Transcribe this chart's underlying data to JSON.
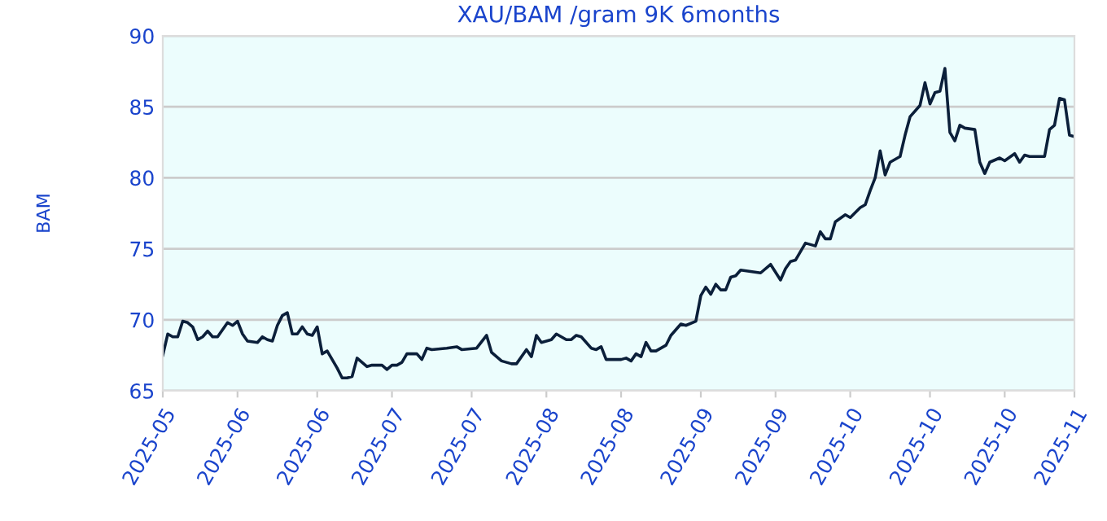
{
  "chart_data": {
    "type": "line",
    "title": "XAU/BAM /gram 9K 6months",
    "ylabel": "BAM",
    "x": [
      "2025-05-06",
      "2025-05-07",
      "2025-05-08",
      "2025-05-09",
      "2025-05-10",
      "2025-05-11",
      "2025-05-12",
      "2025-05-13",
      "2025-05-14",
      "2025-05-15",
      "2025-05-16",
      "2025-05-17",
      "2025-05-19",
      "2025-05-20",
      "2025-05-21",
      "2025-05-22",
      "2025-05-23",
      "2025-05-25",
      "2025-05-26",
      "2025-05-27",
      "2025-05-28",
      "2025-05-29",
      "2025-05-30",
      "2025-05-31",
      "2025-06-01",
      "2025-06-02",
      "2025-06-03",
      "2025-06-04",
      "2025-06-05",
      "2025-06-06",
      "2025-06-07",
      "2025-06-08",
      "2025-06-09",
      "2025-06-10",
      "2025-06-11",
      "2025-06-12",
      "2025-06-13",
      "2025-06-14",
      "2025-06-15",
      "2025-06-16",
      "2025-06-17",
      "2025-06-19",
      "2025-06-20",
      "2025-06-21",
      "2025-06-22",
      "2025-06-23",
      "2025-06-24",
      "2025-06-26",
      "2025-06-27",
      "2025-06-28",
      "2025-06-29",
      "2025-07-02",
      "2025-07-04",
      "2025-07-05",
      "2025-07-08",
      "2025-07-10",
      "2025-07-11",
      "2025-07-13",
      "2025-07-15",
      "2025-07-16",
      "2025-07-18",
      "2025-07-19",
      "2025-07-20",
      "2025-07-21",
      "2025-07-23",
      "2025-07-24",
      "2025-07-26",
      "2025-07-27",
      "2025-07-28",
      "2025-07-29",
      "2025-07-31",
      "2025-08-01",
      "2025-08-02",
      "2025-08-03",
      "2025-08-06",
      "2025-08-07",
      "2025-08-08",
      "2025-08-09",
      "2025-08-10",
      "2025-08-11",
      "2025-08-12",
      "2025-08-13",
      "2025-08-15",
      "2025-08-16",
      "2025-08-18",
      "2025-08-19",
      "2025-08-21",
      "2025-08-22",
      "2025-08-23",
      "2025-08-24",
      "2025-08-25",
      "2025-08-26",
      "2025-08-27",
      "2025-08-28",
      "2025-08-29",
      "2025-08-30",
      "2025-09-01",
      "2025-09-03",
      "2025-09-05",
      "2025-09-07",
      "2025-09-08",
      "2025-09-09",
      "2025-09-10",
      "2025-09-12",
      "2025-09-14",
      "2025-09-15",
      "2025-09-16",
      "2025-09-17",
      "2025-09-18",
      "2025-09-20",
      "2025-09-21",
      "2025-09-23",
      "2025-09-24",
      "2025-09-25",
      "2025-09-26",
      "2025-09-27",
      "2025-09-28",
      "2025-09-29",
      "2025-10-01",
      "2025-10-02",
      "2025-10-03",
      "2025-10-05",
      "2025-10-06",
      "2025-10-07",
      "2025-10-08",
      "2025-10-09",
      "2025-10-10",
      "2025-10-11",
      "2025-10-12",
      "2025-10-13",
      "2025-10-14",
      "2025-10-16",
      "2025-10-17",
      "2025-10-18",
      "2025-10-19",
      "2025-10-21",
      "2025-10-22",
      "2025-10-24",
      "2025-10-25",
      "2025-10-26",
      "2025-10-27",
      "2025-10-30",
      "2025-10-31",
      "2025-11-01",
      "2025-11-02",
      "2025-11-03",
      "2025-11-04",
      "2025-11-05"
    ],
    "series": [
      {
        "color": "#0b1f3a",
        "values": [
          67.5,
          69.0,
          68.8,
          68.8,
          69.9,
          69.8,
          69.5,
          68.6,
          68.8,
          69.2,
          68.8,
          68.8,
          69.8,
          69.6,
          69.9,
          69.0,
          68.5,
          68.4,
          68.8,
          68.6,
          68.5,
          69.6,
          70.3,
          70.5,
          69.0,
          69.0,
          69.5,
          69.0,
          68.9,
          69.5,
          67.6,
          67.8,
          67.2,
          66.6,
          65.9,
          65.9,
          66.0,
          67.3,
          67.0,
          66.7,
          66.8,
          66.8,
          66.5,
          66.8,
          66.8,
          67.0,
          67.6,
          67.6,
          67.2,
          68.0,
          67.9,
          68.0,
          68.1,
          67.9,
          68.0,
          68.9,
          67.7,
          67.1,
          66.9,
          66.9,
          67.9,
          67.4,
          68.9,
          68.4,
          68.6,
          69.0,
          68.6,
          68.6,
          68.9,
          68.8,
          68.0,
          67.9,
          68.1,
          67.2,
          67.2,
          67.3,
          67.1,
          67.6,
          67.4,
          68.4,
          67.8,
          67.8,
          68.2,
          68.9,
          69.7,
          69.6,
          69.9,
          71.7,
          72.3,
          71.8,
          72.5,
          72.1,
          72.1,
          73.0,
          73.1,
          73.5,
          73.4,
          73.3,
          73.9,
          72.8,
          73.6,
          74.1,
          74.2,
          75.4,
          75.2,
          76.2,
          75.7,
          75.7,
          76.9,
          77.4,
          77.2,
          77.9,
          78.1,
          79.1,
          80.0,
          81.9,
          80.2,
          81.1,
          81.5,
          83.0,
          84.3,
          85.1,
          86.7,
          85.2,
          86.0,
          86.1,
          87.7,
          83.2,
          82.6,
          83.7,
          83.5,
          83.4,
          81.1,
          80.3,
          81.1,
          81.4,
          81.2,
          81.7,
          81.1,
          81.6,
          81.5,
          81.5,
          83.4,
          83.7,
          85.6,
          85.5,
          83.0,
          82.9
        ]
      }
    ],
    "xlim": [
      "2025-05-06",
      "2025-11-05"
    ],
    "xticks": [
      {
        "value": "2025-05-06",
        "label": "2025-05"
      },
      {
        "value": "2025-05-21",
        "label": "2025-06"
      },
      {
        "value": "2025-06-06",
        "label": "2025-06"
      },
      {
        "value": "2025-06-21",
        "label": "2025-07"
      },
      {
        "value": "2025-07-07",
        "label": "2025-07"
      },
      {
        "value": "2025-07-22",
        "label": "2025-08"
      },
      {
        "value": "2025-08-06",
        "label": "2025-08"
      },
      {
        "value": "2025-08-22",
        "label": "2025-09"
      },
      {
        "value": "2025-09-06",
        "label": "2025-09"
      },
      {
        "value": "2025-09-21",
        "label": "2025-10"
      },
      {
        "value": "2025-10-07",
        "label": "2025-10"
      },
      {
        "value": "2025-10-22",
        "label": "2025-10"
      },
      {
        "value": "2025-11-05",
        "label": "2025-11"
      }
    ],
    "ylim": [
      65,
      90
    ],
    "yticks": [
      65,
      70,
      75,
      80,
      85,
      90
    ],
    "grid": "y",
    "marker": "none",
    "line_style": "solid"
  }
}
